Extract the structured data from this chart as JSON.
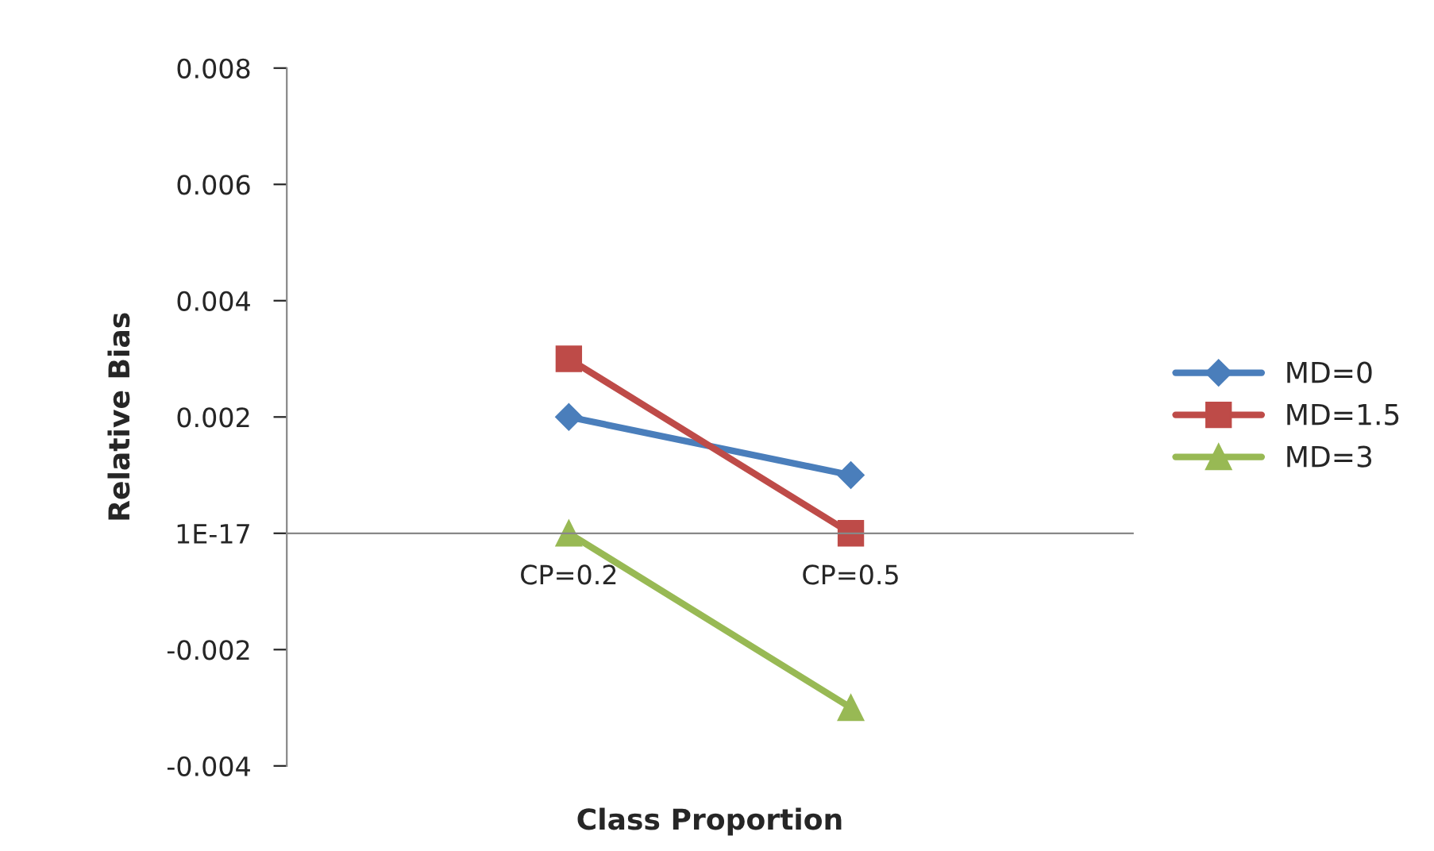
{
  "chart_data": {
    "type": "line",
    "xlabel": "Class Proportion",
    "ylabel": "Relative Bias",
    "categories": [
      "CP=0.2",
      "CP=0.5"
    ],
    "series": [
      {
        "name": "MD=0",
        "color": "#4a7ebb",
        "marker": "diamond",
        "values": [
          0.002,
          0.001
        ]
      },
      {
        "name": "MD=1.5",
        "color": "#be4b48",
        "marker": "square",
        "values": [
          0.003,
          0
        ]
      },
      {
        "name": "MD=3",
        "color": "#98b954",
        "marker": "triangle",
        "values": [
          0,
          -0.003
        ]
      }
    ],
    "ylim": [
      -0.004,
      0.008
    ],
    "yticks": [
      -0.004,
      -0.002,
      {
        "value": 0,
        "label": "1E-17"
      },
      0.002,
      0.004,
      0.006,
      0.008
    ],
    "grid": false,
    "legend": "right"
  }
}
